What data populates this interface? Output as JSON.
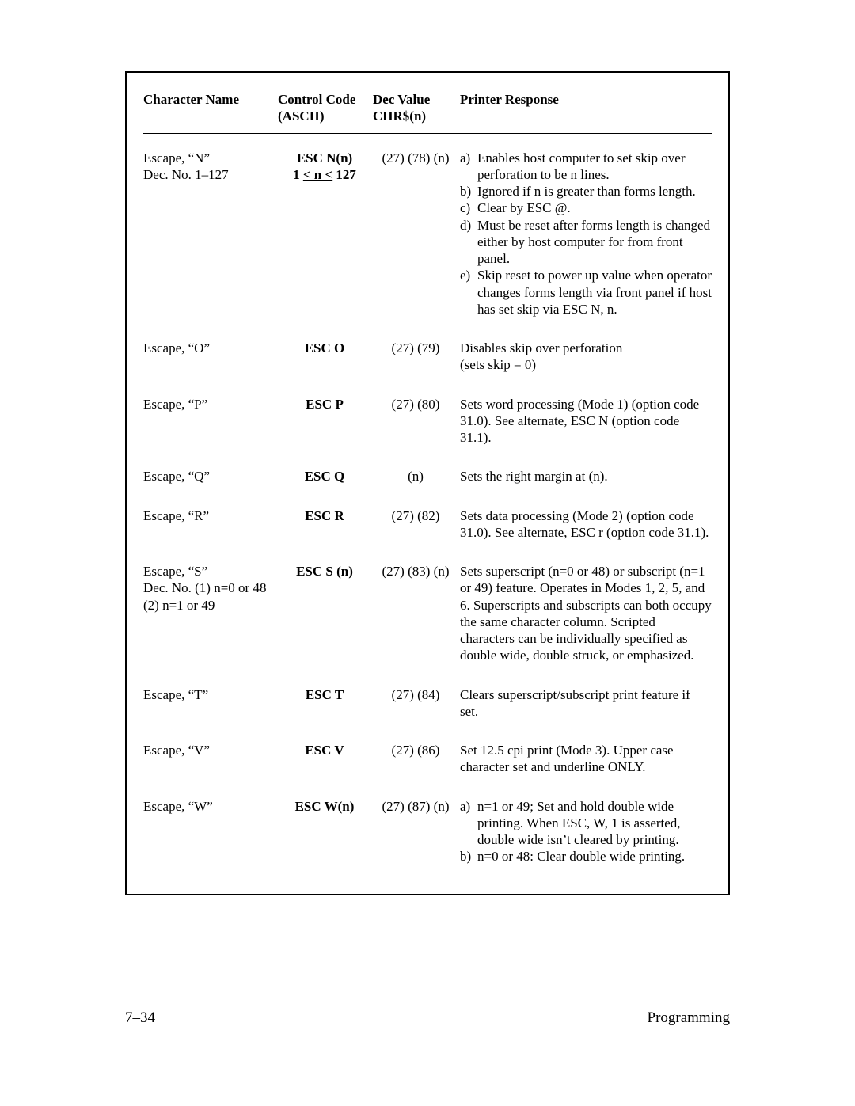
{
  "headers": {
    "name": "Character Name",
    "code_l1": "Control Code",
    "code_l2": "(ASCII)",
    "dec_l1": "Dec Value",
    "dec_l2": "CHR$(n)",
    "resp": "Printer Response"
  },
  "rows": {
    "n": {
      "name_l1": "Escape, “N”",
      "name_l2": "Dec. No. 1–127",
      "code_l1": "ESC N(n)",
      "code_l2_pre": "1 ",
      "code_l2_mid": "< n <",
      "code_l2_suf": " 127",
      "dec": "(27) (78) (n)",
      "resp": {
        "a_lab": "a)",
        "a_txt": "Enables host computer to set skip over perforation to be n lines.",
        "b_lab": "b)",
        "b_txt": "Ignored if n is greater than forms length.",
        "c_lab": "c)",
        "c_txt": "Clear by ESC @.",
        "d_lab": "d)",
        "d_txt": "Must be reset after forms length is changed either by host computer for from front panel.",
        "e_lab": "e)",
        "e_txt": "Skip reset to power up value when operator changes forms length via front panel if host has set skip via ESC N, n."
      }
    },
    "o": {
      "name": "Escape, “O”",
      "code": "ESC O",
      "dec": "(27) (79)",
      "resp_l1": "Disables skip over perforation",
      "resp_l2": "(sets skip = 0)"
    },
    "p": {
      "name": "Escape, “P”",
      "code": "ESC P",
      "dec": "(27) (80)",
      "resp": "Sets word processing (Mode 1) (option code 31.0). See alternate, ESC N (option code 31.1)."
    },
    "q": {
      "name": "Escape, “Q”",
      "code": "ESC Q",
      "dec": "(n)",
      "resp": "Sets the right margin at (n)."
    },
    "r": {
      "name": "Escape, “R”",
      "code": "ESC R",
      "dec": "(27) (82)",
      "resp": "Sets data processing (Mode 2) (option code 31.0). See alternate, ESC r (option code 31.1)."
    },
    "s": {
      "name_l1": "Escape, “S”",
      "name_l2": "Dec. No. (1) n=0 or 48 (2) n=1 or 49",
      "code": "ESC S (n)",
      "dec": "(27) (83) (n)",
      "resp": "Sets superscript (n=0 or 48) or subscript (n=1 or 49) feature. Operates in Modes 1, 2, 5, and 6. Superscripts and subscripts can both occupy the same character column. Scripted characters can be individually specified as double wide, double struck, or emphasized."
    },
    "t": {
      "name": "Escape, “T”",
      "code": "ESC T",
      "dec": "(27) (84)",
      "resp": "Clears superscript/subscript print feature if set."
    },
    "v": {
      "name": "Escape, “V”",
      "code": "ESC V",
      "dec": "(27) (86)",
      "resp": "Set 12.5 cpi print (Mode 3). Upper case character set and underline ONLY."
    },
    "w": {
      "name": "Escape, “W”",
      "code": "ESC W(n)",
      "dec": "(27) (87) (n)",
      "resp": {
        "a_lab": "a)",
        "a_txt": "n=1 or 49; Set and hold double wide printing. When ESC, W, 1 is asserted, double wide isn’t cleared by printing.",
        "b_lab": "b)",
        "b_txt": "n=0 or 48: Clear double wide printing."
      }
    }
  },
  "footer": {
    "left": "7–34",
    "right": "Programming"
  }
}
